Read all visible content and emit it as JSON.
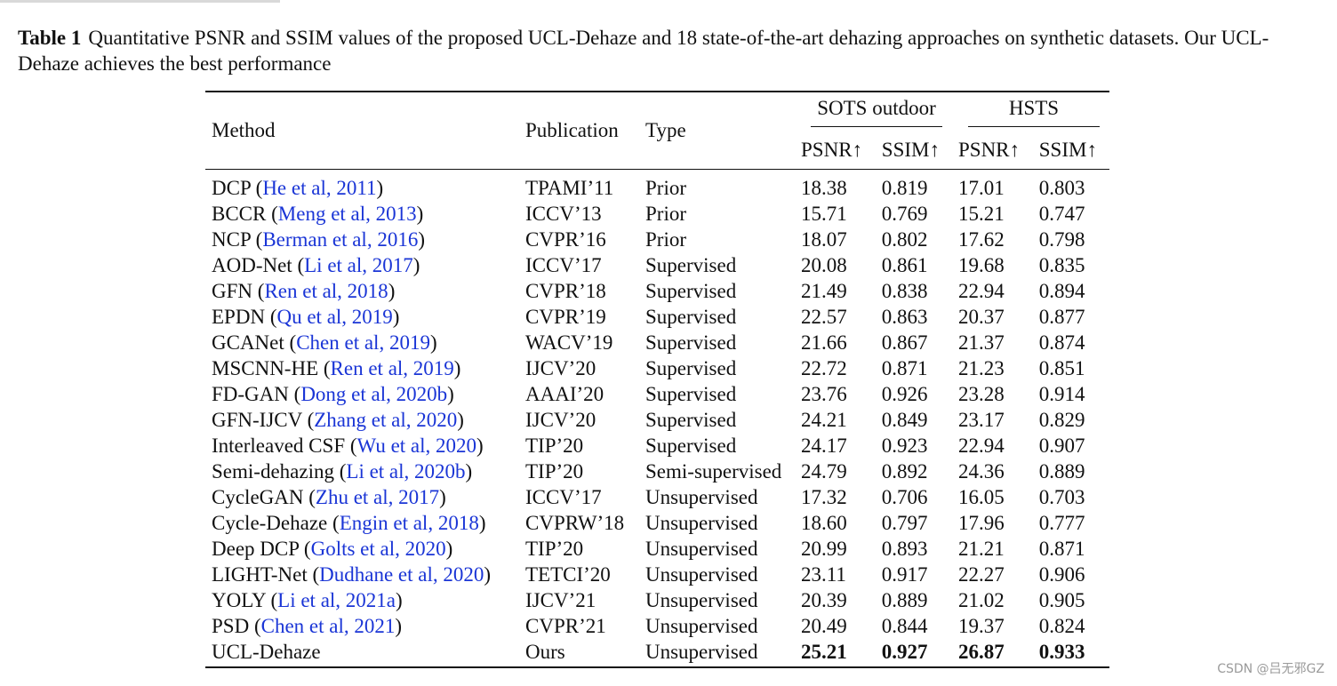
{
  "caption": {
    "label": "Table 1",
    "text": "Quantitative PSNR and SSIM values of the proposed UCL-Dehaze and 18 state-of-the-art dehazing approaches on synthetic datasets. Our UCL-Dehaze achieves the best performance"
  },
  "header": {
    "method": "Method",
    "publication": "Publication",
    "type": "Type",
    "group1": "SOTS outdoor",
    "group2": "HSTS",
    "psnr": "PSNR↑",
    "ssim": "SSIM↑"
  },
  "rows": [
    {
      "method": "DCP",
      "cite_text": "He et al, 2011",
      "pub": "TPAMI’11",
      "type": "Prior",
      "sots_psnr": "18.38",
      "sots_ssim": "0.819",
      "hsts_psnr": "17.01",
      "hsts_ssim": "0.803"
    },
    {
      "method": "BCCR",
      "cite_text": "Meng et al, 2013",
      "pub": "ICCV’13",
      "type": "Prior",
      "sots_psnr": "15.71",
      "sots_ssim": "0.769",
      "hsts_psnr": "15.21",
      "hsts_ssim": "0.747"
    },
    {
      "method": "NCP",
      "cite_text": "Berman et al, 2016",
      "pub": "CVPR’16",
      "type": "Prior",
      "sots_psnr": "18.07",
      "sots_ssim": "0.802",
      "hsts_psnr": "17.62",
      "hsts_ssim": "0.798"
    },
    {
      "method": "AOD-Net",
      "cite_text": "Li et al, 2017",
      "pub": "ICCV’17",
      "type": "Supervised",
      "sots_psnr": "20.08",
      "sots_ssim": "0.861",
      "hsts_psnr": "19.68",
      "hsts_ssim": "0.835"
    },
    {
      "method": "GFN",
      "cite_text": "Ren et al, 2018",
      "pub": "CVPR’18",
      "type": "Supervised",
      "sots_psnr": "21.49",
      "sots_ssim": "0.838",
      "hsts_psnr": "22.94",
      "hsts_ssim": "0.894"
    },
    {
      "method": "EPDN",
      "cite_text": "Qu et al, 2019",
      "pub": "CVPR’19",
      "type": "Supervised",
      "sots_psnr": "22.57",
      "sots_ssim": "0.863",
      "hsts_psnr": "20.37",
      "hsts_ssim": "0.877"
    },
    {
      "method": "GCANet",
      "cite_text": "Chen et al, 2019",
      "pub": "WACV’19",
      "type": "Supervised",
      "sots_psnr": "21.66",
      "sots_ssim": "0.867",
      "hsts_psnr": "21.37",
      "hsts_ssim": "0.874"
    },
    {
      "method": "MSCNN-HE",
      "cite_text": "Ren et al, 2019",
      "pub": "IJCV’20",
      "type": "Supervised",
      "sots_psnr": "22.72",
      "sots_ssim": "0.871",
      "hsts_psnr": "21.23",
      "hsts_ssim": "0.851"
    },
    {
      "method": "FD-GAN",
      "cite_text": "Dong et al, 2020b",
      "pub": "AAAI’20",
      "type": "Supervised",
      "sots_psnr": "23.76",
      "sots_ssim": "0.926",
      "hsts_psnr": "23.28",
      "hsts_ssim": "0.914"
    },
    {
      "method": "GFN-IJCV",
      "cite_text": "Zhang et al, 2020",
      "pub": "IJCV’20",
      "type": "Supervised",
      "sots_psnr": "24.21",
      "sots_ssim": "0.849",
      "hsts_psnr": "23.17",
      "hsts_ssim": "0.829"
    },
    {
      "method": "Interleaved CSF",
      "cite_text": "Wu et al, 2020",
      "pub": "TIP’20",
      "type": "Supervised",
      "sots_psnr": "24.17",
      "sots_ssim": "0.923",
      "hsts_psnr": "22.94",
      "hsts_ssim": "0.907"
    },
    {
      "method": "Semi-dehazing",
      "cite_text": "Li et al, 2020b",
      "pub": "TIP’20",
      "type": "Semi-supervised",
      "sots_psnr": "24.79",
      "sots_ssim": "0.892",
      "hsts_psnr": "24.36",
      "hsts_ssim": "0.889"
    },
    {
      "method": "CycleGAN",
      "cite_text": "Zhu et al, 2017",
      "pub": "ICCV’17",
      "type": "Unsupervised",
      "sots_psnr": "17.32",
      "sots_ssim": "0.706",
      "hsts_psnr": "16.05",
      "hsts_ssim": "0.703"
    },
    {
      "method": "Cycle-Dehaze",
      "cite_text": "Engin et al, 2018",
      "pub": "CVPRW’18",
      "type": "Unsupervised",
      "sots_psnr": "18.60",
      "sots_ssim": "0.797",
      "hsts_psnr": "17.96",
      "hsts_ssim": "0.777"
    },
    {
      "method": "Deep DCP",
      "cite_text": "Golts et al, 2020",
      "pub": "TIP’20",
      "type": "Unsupervised",
      "sots_psnr": "20.99",
      "sots_ssim": "0.893",
      "hsts_psnr": "21.21",
      "hsts_ssim": "0.871"
    },
    {
      "method": "LIGHT-Net",
      "cite_text": "Dudhane et al, 2020",
      "pub": "TETCI’20",
      "type": "Unsupervised",
      "sots_psnr": "23.11",
      "sots_ssim": "0.917",
      "hsts_psnr": "22.27",
      "hsts_ssim": "0.906"
    },
    {
      "method": "YOLY",
      "cite_text": "Li et al, 2021a",
      "pub": "IJCV’21",
      "type": "Unsupervised",
      "sots_psnr": "20.39",
      "sots_ssim": "0.889",
      "hsts_psnr": "21.02",
      "hsts_ssim": "0.905"
    },
    {
      "method": "PSD",
      "cite_text": "Chen et al, 2021",
      "pub": "CVPR’21",
      "type": "Unsupervised",
      "sots_psnr": "20.49",
      "sots_ssim": "0.844",
      "hsts_psnr": "19.37",
      "hsts_ssim": "0.824"
    },
    {
      "method": "UCL-Dehaze",
      "cite_text": "",
      "pub": "Ours",
      "type": "Unsupervised",
      "sots_psnr": "25.21",
      "sots_ssim": "0.927",
      "hsts_psnr": "26.87",
      "hsts_ssim": "0.933",
      "bold": true
    }
  ],
  "watermark": "CSDN @吕无邪GZ",
  "colors": {
    "citation": "#1a35d6"
  }
}
